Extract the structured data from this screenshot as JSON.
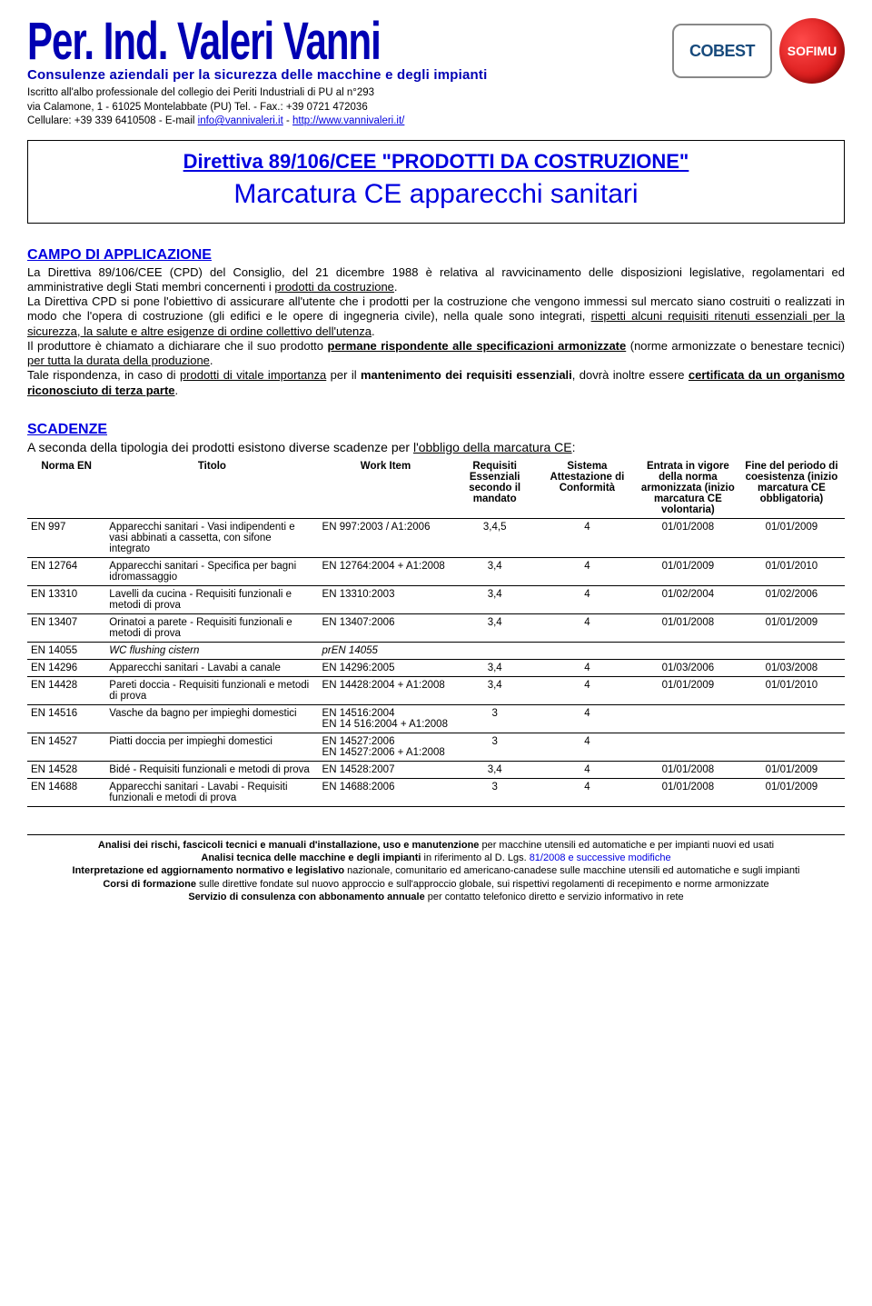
{
  "header": {
    "main_title": "Per. Ind. Valeri Vanni",
    "subtitle": "Consulenze aziendali per la sicurezza delle macchine e degli impianti",
    "line1": "Iscritto all'albo professionale del collegio dei Periti Industriali di PU al n°293",
    "line2": "via Calamone, 1 - 61025 Montelabbate (PU) Tel. - Fax.: +39 0721 472036",
    "line3_pre": "Cellulare: +39 339 6410508 - E-mail ",
    "email": "info@vannivaleri.it",
    "line3_mid": " - ",
    "url": "http://www.vannivaleri.it/",
    "logo1": "COBEST",
    "logo2": "SOFIMU"
  },
  "directive": {
    "line1": "Direttiva 89/106/CEE \"PRODOTTI DA COSTRUZIONE\"",
    "line2": "Marcatura CE apparecchi sanitari"
  },
  "campo": {
    "heading": "CAMPO DI APPLICAZIONE",
    "p1a": "La Direttiva 89/106/CEE (CPD) del Consiglio, del 21 dicembre 1988 è relativa al ravvicinamento delle disposizioni legislative, regolamentari ed amministrative degli Stati membri concernenti i ",
    "p1u": "prodotti da costruzione",
    "p1b": ".",
    "p2a": "La Direttiva CPD si pone l'obiettivo di assicurare all'utente che i prodotti per la costruzione che vengono immessi sul mercato siano costruiti o realizzati in modo che l'opera di costruzione (gli edifici e le opere di ingegneria civile), nella quale sono integrati, ",
    "p2u": "rispetti alcuni requisiti ritenuti essenziali per la sicurezza, la salute e altre esigenze di ordine collettivo dell'utenza",
    "p2b": ".",
    "p3a": "Il produttore è chiamato a dichiarare che il suo prodotto ",
    "p3u1": "permane rispondente alle specificazioni armonizzate",
    "p3mid": " (norme armonizzate o benestare tecnici) ",
    "p3u2": "per tutta la durata della produzione",
    "p3b": ".",
    "p4a": "Tale rispondenza, in caso di ",
    "p4u1": "prodotti di vitale importanza",
    "p4mid1": " per il ",
    "p4b1": "mantenimento dei requisiti essenziali",
    "p4mid2": ", dovrà inoltre essere ",
    "p4u2": "certificata da un organismo riconosciuto di terza parte",
    "p4b2": "."
  },
  "scadenze": {
    "heading": "SCADENZE",
    "intro_a": "A seconda della tipologia dei prodotti esistono diverse scadenze per ",
    "intro_u": "l'obbligo della marcatura CE",
    "intro_b": ":"
  },
  "table": {
    "headers": {
      "norma": "Norma EN",
      "titolo": "Titolo",
      "work": "Work Item",
      "req": "Requisiti Essenziali secondo il mandato",
      "sis": "Sistema Attestazione di Conformità",
      "ent": "Entrata in vigore della norma armonizzata (inizio marcatura CE volontaria)",
      "fine": "Fine del periodo di coesistenza (inizio marcatura CE obbligatoria)"
    },
    "rows": [
      {
        "norma": "EN 997",
        "titolo": "Apparecchi sanitari - Vasi indipendenti e vasi abbinati a cassetta, con sifone integrato",
        "work": "EN 997:2003 / A1:2006",
        "req": "3,4,5",
        "sis": "4",
        "ent": "01/01/2008",
        "fine": "01/01/2009"
      },
      {
        "norma": "EN 12764",
        "titolo": "Apparecchi sanitari - Specifica per bagni idromassaggio",
        "work": "EN 12764:2004 + A1:2008",
        "req": "3,4",
        "sis": "4",
        "ent": "01/01/2009",
        "fine": "01/01/2010"
      },
      {
        "norma": "EN 13310",
        "titolo": "Lavelli da cucina - Requisiti funzionali e metodi di prova",
        "work": "EN 13310:2003",
        "req": "3,4",
        "sis": "4",
        "ent": "01/02/2004",
        "fine": "01/02/2006"
      },
      {
        "norma": "EN 13407",
        "titolo": "Orinatoi a parete - Requisiti funzionali e metodi di prova",
        "work": "EN 13407:2006",
        "req": "3,4",
        "sis": "4",
        "ent": "01/01/2008",
        "fine": "01/01/2009"
      },
      {
        "norma": "EN 14055",
        "titolo": "WC flushing cistern",
        "titolo_ital": true,
        "work": "prEN 14055",
        "work_ital": true,
        "req": "",
        "sis": "",
        "ent": "",
        "fine": ""
      },
      {
        "norma": "EN 14296",
        "titolo": "Apparecchi sanitari - Lavabi a canale",
        "work": "EN 14296:2005",
        "req": "3,4",
        "sis": "4",
        "ent": "01/03/2006",
        "fine": "01/03/2008"
      },
      {
        "norma": "EN 14428",
        "titolo": "Pareti doccia - Requisiti funzionali e metodi di prova",
        "work": "EN 14428:2004 + A1:2008",
        "req": "3,4",
        "sis": "4",
        "ent": "01/01/2009",
        "fine": "01/01/2010"
      },
      {
        "norma": "EN 14516",
        "titolo": "Vasche da bagno per impieghi domestici",
        "work": "EN 14516:2004\nEN 14 516:2004 + A1:2008",
        "work_ital2": true,
        "req": "3",
        "sis": "4",
        "ent": "",
        "fine": ""
      },
      {
        "norma": "EN 14527",
        "titolo": "Piatti doccia per impieghi domestici",
        "work": "EN 14527:2006\nEN 14527:2006 + A1:2008",
        "work_ital2": true,
        "req": "3",
        "sis": "4",
        "ent": "",
        "fine": ""
      },
      {
        "norma": "EN 14528",
        "titolo": "Bidé - Requisiti funzionali e metodi di prova",
        "work": "EN 14528:2007",
        "req": "3,4",
        "sis": "4",
        "ent": "01/01/2008",
        "fine": "01/01/2009"
      },
      {
        "norma": "EN 14688",
        "titolo": "Apparecchi sanitari - Lavabi - Requisiti funzionali e metodi di prova",
        "work": "EN 14688:2006",
        "req": "3",
        "sis": "4",
        "ent": "01/01/2008",
        "fine": "01/01/2009"
      }
    ]
  },
  "footer": {
    "l1b": "Analisi dei rischi, fascicoli tecnici e manuali d'installazione, uso e manutenzione",
    "l1r": " per macchine utensili ed automatiche e per impianti nuovi ed usati",
    "l2b": "Analisi tecnica delle macchine e degli impianti",
    "l2r": " in riferimento al D. Lgs. ",
    "l2blue": "81/2008 e successive modifiche",
    "l3b": "Interpretazione ed aggiornamento normativo e legislativo",
    "l3r": " nazionale, comunitario ed americano-canadese sulle macchine utensili ed automatiche e sugli impianti",
    "l4b": "Corsi di formazione",
    "l4r": " sulle direttive fondate sul nuovo approccio e sull'approccio globale, sui rispettivi regolamenti di recepimento e norme armonizzate",
    "l5b": "Servizio di consulenza con abbonamento annuale",
    "l5r": " per contatto telefonico diretto e servizio informativo in rete"
  }
}
